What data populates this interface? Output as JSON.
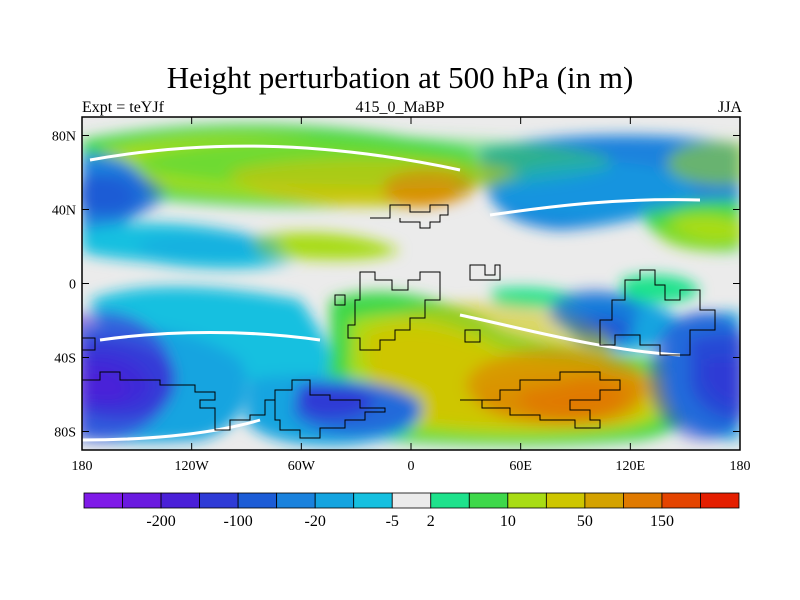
{
  "title": "Height perturbation at 500 hPa (in m)",
  "left_label": "Expt = teYJf",
  "center_label": "415_0_MaBP",
  "right_label": "JJA",
  "chart_data": {
    "type": "heatmap",
    "projection": "cylindrical-equidistant",
    "x_ticks": [
      {
        "value": -180,
        "label": "180"
      },
      {
        "value": -120,
        "label": "120W"
      },
      {
        "value": -60,
        "label": "60W"
      },
      {
        "value": 0,
        "label": "0"
      },
      {
        "value": 60,
        "label": "60E"
      },
      {
        "value": 120,
        "label": "120E"
      },
      {
        "value": 180,
        "label": "180"
      }
    ],
    "y_ticks": [
      {
        "value": 80,
        "label": "80N"
      },
      {
        "value": 40,
        "label": "40N"
      },
      {
        "value": 0,
        "label": "0"
      },
      {
        "value": -40,
        "label": "40S"
      },
      {
        "value": -80,
        "label": "80S"
      }
    ],
    "xlim": [
      -180,
      180
    ],
    "ylim": [
      -90,
      90
    ],
    "colorbar": {
      "colors": [
        "#7f1ae8",
        "#6a1ae0",
        "#4a20d8",
        "#2e3bd6",
        "#1c5cd6",
        "#1a82dd",
        "#14a4e0",
        "#16c0e0",
        "#ebebeb",
        "#1ee28c",
        "#3ed84a",
        "#a8dc14",
        "#cec600",
        "#d4a200",
        "#e07a00",
        "#e44400",
        "#e41e00"
      ],
      "labels": [
        {
          "after_index": 1,
          "label": "-200"
        },
        {
          "after_index": 3,
          "label": "-100"
        },
        {
          "after_index": 5,
          "label": "-20"
        },
        {
          "after_index": 7,
          "label": "-5"
        },
        {
          "after_index": 8,
          "label": "2"
        },
        {
          "after_index": 10,
          "label": "10"
        },
        {
          "after_index": 12,
          "label": "50"
        },
        {
          "after_index": 14,
          "label": "150"
        }
      ]
    },
    "field_blobs": [
      {
        "lon": -20,
        "lat": 65,
        "rx": 130,
        "ry": 14,
        "level": 10
      },
      {
        "lon": -20,
        "lat": 58,
        "rx": 80,
        "ry": 10,
        "level": 12
      },
      {
        "lon": 10,
        "lat": 52,
        "rx": 25,
        "ry": 10,
        "level": 14
      },
      {
        "lon": -160,
        "lat": 48,
        "rx": 25,
        "ry": 12,
        "level": 4
      },
      {
        "lon": 100,
        "lat": 50,
        "rx": 55,
        "ry": 16,
        "level": 6
      },
      {
        "lon": 170,
        "lat": 65,
        "rx": 30,
        "ry": 12,
        "level": 11
      },
      {
        "lon": 160,
        "lat": 28,
        "rx": 25,
        "ry": 10,
        "level": 11
      },
      {
        "lon": -110,
        "lat": 20,
        "rx": 40,
        "ry": 7,
        "level": 6
      },
      {
        "lon": -170,
        "lat": -50,
        "rx": 40,
        "ry": 35,
        "level": 2
      },
      {
        "lon": 160,
        "lat": -50,
        "rx": 30,
        "ry": 35,
        "level": 3
      },
      {
        "lon": 40,
        "lat": -35,
        "rx": 70,
        "ry": 25,
        "level": 12
      },
      {
        "lon": 80,
        "lat": -55,
        "rx": 50,
        "ry": 20,
        "level": 14
      },
      {
        "lon": -30,
        "lat": -68,
        "rx": 35,
        "ry": 14,
        "level": 3
      },
      {
        "lon": 100,
        "lat": -15,
        "rx": 25,
        "ry": 12,
        "level": 4
      }
    ]
  }
}
